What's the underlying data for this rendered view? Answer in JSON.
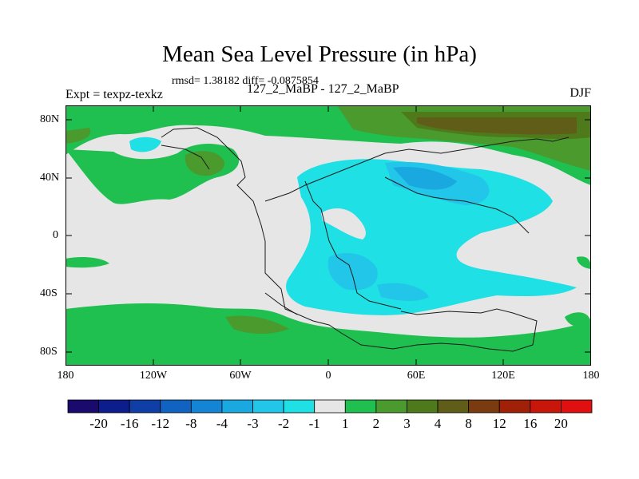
{
  "header": {
    "title": "Mean Sea Level Pressure (in hPa)",
    "stats": "rmsd= 1.38182 diff= -0.0875854",
    "experiment": "Expt = texpz-texkz",
    "runs": "127_2_MaBP - 127_2_MaBP",
    "season": "DJF"
  },
  "axes": {
    "lon_labels": [
      "180",
      "120W",
      "60W",
      "0",
      "60E",
      "120E",
      "180"
    ],
    "lat_labels": [
      "80N",
      "40N",
      "0",
      "40S",
      "80S"
    ]
  },
  "colorbar": {
    "levels": [
      "-20",
      "-16",
      "-12",
      "-8",
      "-4",
      "-3",
      "-2",
      "-1",
      "1",
      "2",
      "3",
      "4",
      "8",
      "12",
      "16",
      "20"
    ],
    "colors": [
      "#1a0a6e",
      "#0d1e8c",
      "#0f3fa6",
      "#1163c2",
      "#1484d4",
      "#1aa8e0",
      "#22c6e8",
      "#1fe0e4",
      "#e6e6e6",
      "#1fbf50",
      "#4a9a2e",
      "#4f7a1c",
      "#5f5d18",
      "#7a3b10",
      "#a02008",
      "#c8160a",
      "#e01010"
    ]
  },
  "colors": {
    "background": "#e6e6e6",
    "land_outline": "#1a1a1a"
  }
}
